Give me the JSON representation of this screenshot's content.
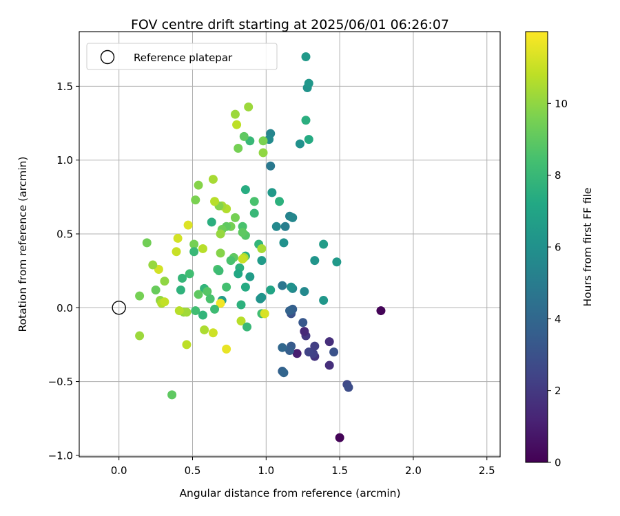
{
  "chart_data": {
    "type": "scatter",
    "title": "FOV centre drift starting at 2025/06/01 06:26:07",
    "xlabel": "Angular distance from reference (arcmin)",
    "ylabel": "Rotation from reference (arcmin)",
    "xlim": [
      -0.27,
      2.59
    ],
    "ylim": [
      -1.01,
      1.87
    ],
    "xticks": [
      0.0,
      0.5,
      1.0,
      1.5,
      2.0,
      2.5
    ],
    "xtick_labels": [
      "0.0",
      "0.5",
      "1.0",
      "1.5",
      "2.0",
      "2.5"
    ],
    "yticks": [
      -1.0,
      -0.5,
      0.0,
      0.5,
      1.0,
      1.5
    ],
    "ytick_labels": [
      "−1.0",
      "−0.5",
      "0.0",
      "0.5",
      "1.0",
      "1.5"
    ],
    "grid": true,
    "legend": {
      "position": "top-left",
      "label": "Reference platepar"
    },
    "reference_point": {
      "x": 0.0,
      "y": 0.0
    },
    "colorbar": {
      "label": "Hours from first FF file",
      "colormap": "viridis",
      "range": [
        0,
        12
      ],
      "ticks": [
        0,
        2,
        4,
        6,
        8,
        10
      ],
      "tick_labels": [
        "0",
        "2",
        "4",
        "6",
        "8",
        "10"
      ]
    },
    "points": [
      {
        "x": 1.5,
        "y": -0.88,
        "h": 0.1
      },
      {
        "x": 1.78,
        "y": -0.02,
        "h": 0.1
      },
      {
        "x": 1.55,
        "y": -0.52,
        "h": 2.6
      },
      {
        "x": 1.56,
        "y": -0.54,
        "h": 2.8
      },
      {
        "x": 1.43,
        "y": -0.23,
        "h": 1.6
      },
      {
        "x": 1.43,
        "y": -0.39,
        "h": 1.6
      },
      {
        "x": 1.46,
        "y": -0.3,
        "h": 3.0
      },
      {
        "x": 1.33,
        "y": -0.33,
        "h": 1.8
      },
      {
        "x": 1.32,
        "y": -0.31,
        "h": 2.3
      },
      {
        "x": 1.33,
        "y": -0.26,
        "h": 2.2
      },
      {
        "x": 1.29,
        "y": -0.3,
        "h": 2.4
      },
      {
        "x": 1.27,
        "y": -0.19,
        "h": 1.9
      },
      {
        "x": 1.26,
        "y": -0.16,
        "h": 1.4
      },
      {
        "x": 1.21,
        "y": -0.31,
        "h": 1.0
      },
      {
        "x": 1.25,
        "y": -0.1,
        "h": 3.3
      },
      {
        "x": 1.17,
        "y": -0.26,
        "h": 3.4
      },
      {
        "x": 1.16,
        "y": -0.29,
        "h": 3.6
      },
      {
        "x": 1.11,
        "y": -0.27,
        "h": 4.0
      },
      {
        "x": 1.11,
        "y": -0.43,
        "h": 3.7
      },
      {
        "x": 1.12,
        "y": -0.44,
        "h": 3.9
      },
      {
        "x": 1.17,
        "y": -0.04,
        "h": 3.0
      },
      {
        "x": 1.17,
        "y": -0.02,
        "h": 3.2
      },
      {
        "x": 1.18,
        "y": -0.01,
        "h": 3.6
      },
      {
        "x": 1.16,
        "y": -0.02,
        "h": 3.8
      },
      {
        "x": 1.18,
        "y": 0.13,
        "h": 5.5
      },
      {
        "x": 1.17,
        "y": 0.14,
        "h": 6.0
      },
      {
        "x": 1.11,
        "y": 0.15,
        "h": 4.7
      },
      {
        "x": 1.26,
        "y": 0.11,
        "h": 5.6
      },
      {
        "x": 1.39,
        "y": 0.05,
        "h": 6.3
      },
      {
        "x": 1.33,
        "y": 0.32,
        "h": 6.2
      },
      {
        "x": 1.48,
        "y": 0.31,
        "h": 6.4
      },
      {
        "x": 1.39,
        "y": 0.43,
        "h": 6.6
      },
      {
        "x": 1.13,
        "y": 0.55,
        "h": 5.1
      },
      {
        "x": 1.07,
        "y": 0.55,
        "h": 5.6
      },
      {
        "x": 1.12,
        "y": 0.44,
        "h": 6.0
      },
      {
        "x": 1.16,
        "y": 0.62,
        "h": 5.3
      },
      {
        "x": 1.18,
        "y": 0.61,
        "h": 5.5
      },
      {
        "x": 1.04,
        "y": 0.78,
        "h": 6.4
      },
      {
        "x": 1.09,
        "y": 0.72,
        "h": 7.6
      },
      {
        "x": 1.03,
        "y": 0.96,
        "h": 4.8
      },
      {
        "x": 1.03,
        "y": 1.18,
        "h": 5.4
      },
      {
        "x": 1.02,
        "y": 1.14,
        "h": 5.7
      },
      {
        "x": 1.23,
        "y": 1.11,
        "h": 6.0
      },
      {
        "x": 1.29,
        "y": 1.14,
        "h": 7.3
      },
      {
        "x": 1.27,
        "y": 1.27,
        "h": 7.5
      },
      {
        "x": 1.28,
        "y": 1.49,
        "h": 6.1
      },
      {
        "x": 1.29,
        "y": 1.52,
        "h": 6.3
      },
      {
        "x": 1.27,
        "y": 1.7,
        "h": 6.4
      },
      {
        "x": 0.98,
        "y": 1.13,
        "h": 9.6
      },
      {
        "x": 0.98,
        "y": 1.05,
        "h": 10.0
      },
      {
        "x": 0.89,
        "y": 1.13,
        "h": 8.0
      },
      {
        "x": 0.85,
        "y": 1.16,
        "h": 9.0
      },
      {
        "x": 0.81,
        "y": 1.08,
        "h": 9.5
      },
      {
        "x": 0.8,
        "y": 1.24,
        "h": 10.8
      },
      {
        "x": 0.79,
        "y": 1.31,
        "h": 10.2
      },
      {
        "x": 0.88,
        "y": 1.36,
        "h": 10.2
      },
      {
        "x": 0.86,
        "y": 0.8,
        "h": 7.4
      },
      {
        "x": 0.92,
        "y": 0.72,
        "h": 8.5
      },
      {
        "x": 0.92,
        "y": 0.64,
        "h": 8.0
      },
      {
        "x": 0.84,
        "y": 0.55,
        "h": 8.5
      },
      {
        "x": 0.86,
        "y": 0.49,
        "h": 8.8
      },
      {
        "x": 0.84,
        "y": 0.51,
        "h": 9.0
      },
      {
        "x": 0.95,
        "y": 0.43,
        "h": 7.8
      },
      {
        "x": 0.97,
        "y": 0.4,
        "h": 10.4
      },
      {
        "x": 0.97,
        "y": 0.32,
        "h": 6.5
      },
      {
        "x": 0.86,
        "y": 0.35,
        "h": 7.5
      },
      {
        "x": 0.85,
        "y": 0.34,
        "h": 10.5
      },
      {
        "x": 0.84,
        "y": 0.33,
        "h": 11.0
      },
      {
        "x": 0.82,
        "y": 0.27,
        "h": 7.6
      },
      {
        "x": 0.81,
        "y": 0.23,
        "h": 7.2
      },
      {
        "x": 0.89,
        "y": 0.21,
        "h": 6.6
      },
      {
        "x": 0.86,
        "y": 0.14,
        "h": 7.3
      },
      {
        "x": 1.03,
        "y": 0.12,
        "h": 7.0
      },
      {
        "x": 0.97,
        "y": 0.07,
        "h": 6.2
      },
      {
        "x": 0.96,
        "y": 0.06,
        "h": 6.1
      },
      {
        "x": 0.83,
        "y": 0.02,
        "h": 7.6
      },
      {
        "x": 0.97,
        "y": -0.04,
        "h": 8.3
      },
      {
        "x": 0.99,
        "y": -0.04,
        "h": 10.5
      },
      {
        "x": 0.99,
        "y": -0.04,
        "h": 11.3
      },
      {
        "x": 0.83,
        "y": -0.09,
        "h": 10.7
      },
      {
        "x": 0.87,
        "y": -0.13,
        "h": 8.0
      },
      {
        "x": 0.79,
        "y": 0.61,
        "h": 9.5
      },
      {
        "x": 0.73,
        "y": 0.67,
        "h": 10.6
      },
      {
        "x": 0.7,
        "y": 0.69,
        "h": 10.4
      },
      {
        "x": 0.68,
        "y": 0.69,
        "h": 9.8
      },
      {
        "x": 0.65,
        "y": 0.72,
        "h": 10.7
      },
      {
        "x": 0.64,
        "y": 0.87,
        "h": 10.4
      },
      {
        "x": 0.54,
        "y": 0.83,
        "h": 9.8
      },
      {
        "x": 0.52,
        "y": 0.73,
        "h": 9.6
      },
      {
        "x": 0.63,
        "y": 0.58,
        "h": 7.5
      },
      {
        "x": 0.76,
        "y": 0.55,
        "h": 9.5
      },
      {
        "x": 0.73,
        "y": 0.55,
        "h": 9.0
      },
      {
        "x": 0.7,
        "y": 0.53,
        "h": 9.3
      },
      {
        "x": 0.69,
        "y": 0.5,
        "h": 10.1
      },
      {
        "x": 0.47,
        "y": 0.56,
        "h": 11.4
      },
      {
        "x": 0.4,
        "y": 0.47,
        "h": 11.2
      },
      {
        "x": 0.51,
        "y": 0.43,
        "h": 9.5
      },
      {
        "x": 0.51,
        "y": 0.38,
        "h": 8.0
      },
      {
        "x": 0.57,
        "y": 0.4,
        "h": 10.7
      },
      {
        "x": 0.39,
        "y": 0.38,
        "h": 11.0
      },
      {
        "x": 0.69,
        "y": 0.37,
        "h": 9.8
      },
      {
        "x": 0.78,
        "y": 0.34,
        "h": 9.0
      },
      {
        "x": 0.76,
        "y": 0.32,
        "h": 8.5
      },
      {
        "x": 0.67,
        "y": 0.26,
        "h": 8.5
      },
      {
        "x": 0.68,
        "y": 0.25,
        "h": 8.2
      },
      {
        "x": 0.48,
        "y": 0.23,
        "h": 8.3
      },
      {
        "x": 0.43,
        "y": 0.2,
        "h": 7.9
      },
      {
        "x": 0.42,
        "y": 0.12,
        "h": 7.7
      },
      {
        "x": 0.58,
        "y": 0.13,
        "h": 7.8
      },
      {
        "x": 0.6,
        "y": 0.11,
        "h": 8.8
      },
      {
        "x": 0.54,
        "y": 0.09,
        "h": 9.0
      },
      {
        "x": 0.62,
        "y": 0.06,
        "h": 8.5
      },
      {
        "x": 0.73,
        "y": 0.14,
        "h": 8.4
      },
      {
        "x": 0.7,
        "y": 0.05,
        "h": 6.6
      },
      {
        "x": 0.69,
        "y": 0.03,
        "h": 11.8
      },
      {
        "x": 0.65,
        "y": -0.01,
        "h": 8.2
      },
      {
        "x": 0.52,
        "y": -0.02,
        "h": 8.3
      },
      {
        "x": 0.57,
        "y": -0.05,
        "h": 7.8
      },
      {
        "x": 0.44,
        "y": -0.03,
        "h": 10.0
      },
      {
        "x": 0.46,
        "y": -0.03,
        "h": 10.3
      },
      {
        "x": 0.41,
        "y": -0.02,
        "h": 10.7
      },
      {
        "x": 0.31,
        "y": 0.18,
        "h": 10.0
      },
      {
        "x": 0.27,
        "y": 0.26,
        "h": 11.2
      },
      {
        "x": 0.23,
        "y": 0.29,
        "h": 10.1
      },
      {
        "x": 0.19,
        "y": 0.44,
        "h": 9.4
      },
      {
        "x": 0.25,
        "y": 0.12,
        "h": 9.2
      },
      {
        "x": 0.28,
        "y": 0.05,
        "h": 10.0
      },
      {
        "x": 0.29,
        "y": 0.03,
        "h": 10.6
      },
      {
        "x": 0.31,
        "y": 0.04,
        "h": 10.9
      },
      {
        "x": 0.14,
        "y": 0.08,
        "h": 9.5
      },
      {
        "x": 0.14,
        "y": -0.19,
        "h": 10.2
      },
      {
        "x": 0.46,
        "y": -0.25,
        "h": 10.8
      },
      {
        "x": 0.58,
        "y": -0.15,
        "h": 10.5
      },
      {
        "x": 0.64,
        "y": -0.17,
        "h": 11.1
      },
      {
        "x": 0.73,
        "y": -0.28,
        "h": 11.6
      },
      {
        "x": 0.36,
        "y": -0.59,
        "h": 9.0
      }
    ]
  }
}
